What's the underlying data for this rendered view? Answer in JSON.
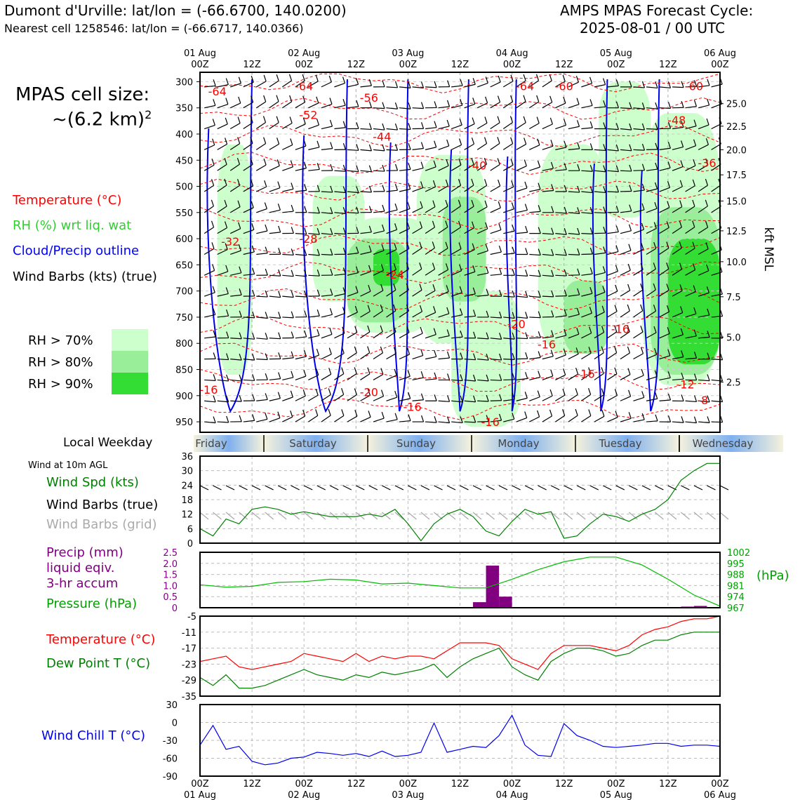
{
  "header": {
    "location": "Dumont d'Urville: lat/lon = (-66.6700, 140.0200)",
    "nearest": "Nearest cell 1258546: lat/lon = (-66.6717, 140.0366)",
    "title1": "AMPS MPAS Forecast Cycle:",
    "title2": "2025-08-01 / 00 UTC"
  },
  "cell_size": {
    "line1": "MPAS cell size:",
    "line2": "~(6.2 km)",
    "sup": "2"
  },
  "legend": {
    "temperature": "Temperature (°C)",
    "rh": "RH (%) wrt liq. wat",
    "cloud": "Cloud/Precip outline",
    "wind": "Wind Barbs (kts) (true)",
    "rh_classes": [
      {
        "label": "RH > 70%",
        "color": "#ccffcc"
      },
      {
        "label": "RH > 80%",
        "color": "#99ee99"
      },
      {
        "label": "RH > 90%",
        "color": "#33dd33"
      }
    ]
  },
  "panel_labels": {
    "local_weekday": "Local Weekday",
    "wind10m": "Wind at 10m AGL",
    "wind_spd": "Wind Spd (kts)",
    "wind_barbs_true": "Wind Barbs (true)",
    "wind_barbs_grid": "Wind Barbs (grid)",
    "precip1": "Precip (mm)",
    "precip2": "liquid eqiv.",
    "precip3": "3-hr accum",
    "pressure": "Pressure (hPa)",
    "pressure_unit": "(hPa)",
    "temp": "Temperature (°C)",
    "dewpoint": "Dew Point T (°C)",
    "windchill": "Wind Chill T (°C)",
    "kft": "kft MSL"
  },
  "time_axis": {
    "hours": [
      0,
      12,
      24,
      36,
      48,
      60,
      72,
      84,
      96,
      108,
      120
    ],
    "top_day_labels": [
      "01 Aug",
      "02 Aug",
      "03 Aug",
      "04 Aug",
      "05 Aug",
      "06 Aug"
    ],
    "top_hour_labels": [
      "00Z",
      "12Z",
      "00Z",
      "12Z",
      "00Z",
      "12Z",
      "00Z",
      "12Z",
      "00Z",
      "12Z",
      "00Z"
    ],
    "weekdays": [
      "Friday",
      "Saturday",
      "Sunday",
      "Monday",
      "Tuesday",
      "Wednesday"
    ]
  },
  "chart_data": [
    {
      "type": "heatmap",
      "name_hint": "time-height cross section",
      "y_pressure_levels": [
        300,
        350,
        400,
        450,
        500,
        550,
        600,
        650,
        700,
        750,
        800,
        850,
        900,
        950
      ],
      "y_ticks_right_kft": [
        "25.0",
        "22.5",
        "20.0",
        "17.5",
        "15.0",
        "12.5",
        "10.0",
        "7.5",
        "5.0",
        "2.5"
      ],
      "y_right_pressure": [
        342,
        385,
        430,
        478,
        528,
        585,
        644,
        711,
        788,
        874
      ],
      "temperature_labels": [
        {
          "t": 4,
          "p": 318,
          "v": "-64"
        },
        {
          "t": 24,
          "p": 308,
          "v": "-64"
        },
        {
          "t": 39,
          "p": 330,
          "v": "-56"
        },
        {
          "t": 25,
          "p": 363,
          "v": "-52"
        },
        {
          "t": 42,
          "p": 405,
          "v": "-44"
        },
        {
          "t": 64,
          "p": 460,
          "v": "-40"
        },
        {
          "t": 75,
          "p": 308,
          "v": "-64"
        },
        {
          "t": 84,
          "p": 308,
          "v": "-60"
        },
        {
          "t": 114,
          "p": 308,
          "v": "-60"
        },
        {
          "t": 110,
          "p": 373,
          "v": "-48"
        },
        {
          "t": 117,
          "p": 455,
          "v": "-36"
        },
        {
          "t": 7,
          "p": 605,
          "v": "-32"
        },
        {
          "t": 25,
          "p": 600,
          "v": "-28"
        },
        {
          "t": 45,
          "p": 668,
          "v": "-24"
        },
        {
          "t": 73,
          "p": 763,
          "v": "-20"
        },
        {
          "t": 80,
          "p": 802,
          "v": "-16"
        },
        {
          "t": 97,
          "p": 772,
          "v": "-16"
        },
        {
          "t": 89,
          "p": 858,
          "v": "-16"
        },
        {
          "t": 112,
          "p": 878,
          "v": "-12"
        },
        {
          "t": 116,
          "p": 908,
          "v": "-8"
        },
        {
          "t": 2,
          "p": 888,
          "v": "-16"
        },
        {
          "t": 39,
          "p": 893,
          "v": "-20"
        },
        {
          "t": 49,
          "p": 921,
          "v": "-16"
        },
        {
          "t": 67,
          "p": 950,
          "v": "-16"
        }
      ],
      "rh_over_70_regions": [
        {
          "t_start": 4,
          "t_end": 12,
          "p_top": 420,
          "p_bottom": 860
        },
        {
          "t_start": 26,
          "t_end": 38,
          "p_top": 480,
          "p_bottom": 720
        },
        {
          "t_start": 34,
          "t_end": 54,
          "p_top": 560,
          "p_bottom": 780
        },
        {
          "t_start": 50,
          "t_end": 66,
          "p_top": 440,
          "p_bottom": 800
        },
        {
          "t_start": 58,
          "t_end": 74,
          "p_top": 700,
          "p_bottom": 960
        },
        {
          "t_start": 78,
          "t_end": 94,
          "p_top": 420,
          "p_bottom": 820
        },
        {
          "t_start": 92,
          "t_end": 104,
          "p_top": 300,
          "p_bottom": 560
        },
        {
          "t_start": 102,
          "t_end": 120,
          "p_top": 360,
          "p_bottom": 880
        }
      ],
      "rh_over_80_regions": [
        {
          "t_start": 34,
          "t_end": 48,
          "p_top": 600,
          "p_bottom": 760
        },
        {
          "t_start": 56,
          "t_end": 66,
          "p_top": 520,
          "p_bottom": 720
        },
        {
          "t_start": 84,
          "t_end": 94,
          "p_top": 680,
          "p_bottom": 820
        },
        {
          "t_start": 104,
          "t_end": 120,
          "p_top": 540,
          "p_bottom": 860
        }
      ],
      "rh_over_90_regions": [
        {
          "t_start": 40,
          "t_end": 46,
          "p_top": 620,
          "p_bottom": 690
        },
        {
          "t_start": 108,
          "t_end": 120,
          "p_top": 600,
          "p_bottom": 840
        }
      ]
    },
    {
      "type": "line",
      "name_hint": "10m wind speed",
      "hours": [
        0,
        3,
        6,
        9,
        12,
        15,
        18,
        21,
        24,
        27,
        30,
        33,
        36,
        39,
        42,
        45,
        48,
        51,
        54,
        57,
        60,
        63,
        66,
        69,
        72,
        75,
        78,
        81,
        84,
        87,
        90,
        93,
        96,
        99,
        102,
        105,
        108,
        111,
        114,
        117,
        120
      ],
      "wind_speed_kts": [
        6,
        3,
        10,
        8,
        14,
        15,
        14,
        12,
        13,
        12,
        11,
        11,
        11,
        12,
        11,
        14,
        8,
        1,
        8,
        12,
        14,
        11,
        5,
        3,
        9,
        14,
        12,
        13,
        2,
        3,
        8,
        12,
        11,
        9,
        12,
        14,
        18,
        26,
        30,
        33,
        33
      ],
      "ylim": [
        0,
        36
      ],
      "yticks": [
        0,
        6,
        12,
        18,
        24,
        30,
        36
      ]
    },
    {
      "type": "bar",
      "name_hint": "3-hr precipitation",
      "bars": [
        {
          "hour_start": 63,
          "hour_end": 66,
          "value": 0.25
        },
        {
          "hour_start": 66,
          "hour_end": 69,
          "value": 1.9
        },
        {
          "hour_start": 69,
          "hour_end": 72,
          "value": 0.5
        },
        {
          "hour_start": 111,
          "hour_end": 114,
          "value": 0.05
        },
        {
          "hour_start": 114,
          "hour_end": 117,
          "value": 0.08
        }
      ],
      "ylim": [
        0,
        2.5
      ],
      "yticks": [
        "0",
        "0.5",
        "1.0",
        "1.5",
        "2.0",
        "2.5"
      ]
    },
    {
      "type": "line",
      "name_hint": "surface pressure",
      "hours": [
        0,
        6,
        12,
        18,
        24,
        30,
        36,
        42,
        48,
        54,
        60,
        66,
        72,
        78,
        84,
        90,
        96,
        102,
        108,
        114,
        120
      ],
      "pressure_hpa": [
        981.5,
        980,
        980.5,
        983,
        983.5,
        985,
        984.5,
        982,
        982.5,
        981,
        979.5,
        979.5,
        985,
        991,
        996,
        999,
        999,
        994,
        985,
        975,
        968
      ],
      "ylim": [
        967,
        1002
      ],
      "yticks": [
        "1002",
        "995",
        "988",
        "981",
        "974",
        "967"
      ]
    },
    {
      "type": "line",
      "name_hint": "temperature and dew point",
      "hours": [
        0,
        3,
        6,
        9,
        12,
        15,
        18,
        21,
        24,
        27,
        30,
        33,
        36,
        39,
        42,
        45,
        48,
        51,
        54,
        57,
        60,
        63,
        66,
        69,
        72,
        75,
        78,
        81,
        84,
        87,
        90,
        93,
        96,
        99,
        102,
        105,
        108,
        111,
        114,
        117,
        120
      ],
      "temperature": [
        -22,
        -21,
        -20,
        -24,
        -25,
        -24,
        -23,
        -22,
        -19,
        -20,
        -21,
        -22,
        -19,
        -22,
        -20,
        -21,
        -20,
        -20,
        -21,
        -18,
        -15,
        -15,
        -15,
        -16,
        -21,
        -23,
        -25,
        -19,
        -16,
        -16,
        -16,
        -17,
        -18,
        -16,
        -12,
        -10,
        -9,
        -7,
        -6,
        -6,
        -5
      ],
      "dew_point": [
        -28,
        -31,
        -27,
        -32,
        -32,
        -31,
        -29,
        -27,
        -25,
        -27,
        -28,
        -29,
        -27,
        -28,
        -26,
        -27,
        -26,
        -25,
        -23,
        -28,
        -24,
        -21,
        -19,
        -17,
        -24,
        -27,
        -29,
        -22,
        -19,
        -17,
        -17,
        -18,
        -20,
        -19,
        -16,
        -14,
        -14,
        -12,
        -11,
        -11,
        -11
      ],
      "ylim": [
        -35,
        -5
      ],
      "yticks": [
        "-5",
        "-11",
        "-17",
        "-23",
        "-29",
        "-35"
      ]
    },
    {
      "type": "line",
      "name_hint": "wind chill",
      "hours": [
        0,
        3,
        6,
        9,
        12,
        15,
        18,
        21,
        24,
        27,
        30,
        33,
        36,
        39,
        42,
        45,
        48,
        51,
        54,
        57,
        60,
        63,
        66,
        69,
        72,
        75,
        78,
        81,
        84,
        87,
        90,
        93,
        96,
        99,
        102,
        105,
        108,
        111,
        114,
        117,
        120
      ],
      "wind_chill": [
        -38,
        -5,
        -45,
        -40,
        -65,
        -71,
        -68,
        -60,
        -58,
        -50,
        -52,
        -55,
        -52,
        -57,
        -48,
        -57,
        -55,
        -50,
        -1,
        -50,
        -45,
        -40,
        -42,
        -22,
        12,
        -38,
        -55,
        -57,
        -2,
        -22,
        -30,
        -40,
        -42,
        -40,
        -38,
        -35,
        -35,
        -40,
        -38,
        -38,
        -40
      ],
      "ylim": [
        -90,
        30
      ],
      "yticks": [
        "30",
        "0",
        "-30",
        "-60",
        "-90"
      ]
    }
  ]
}
